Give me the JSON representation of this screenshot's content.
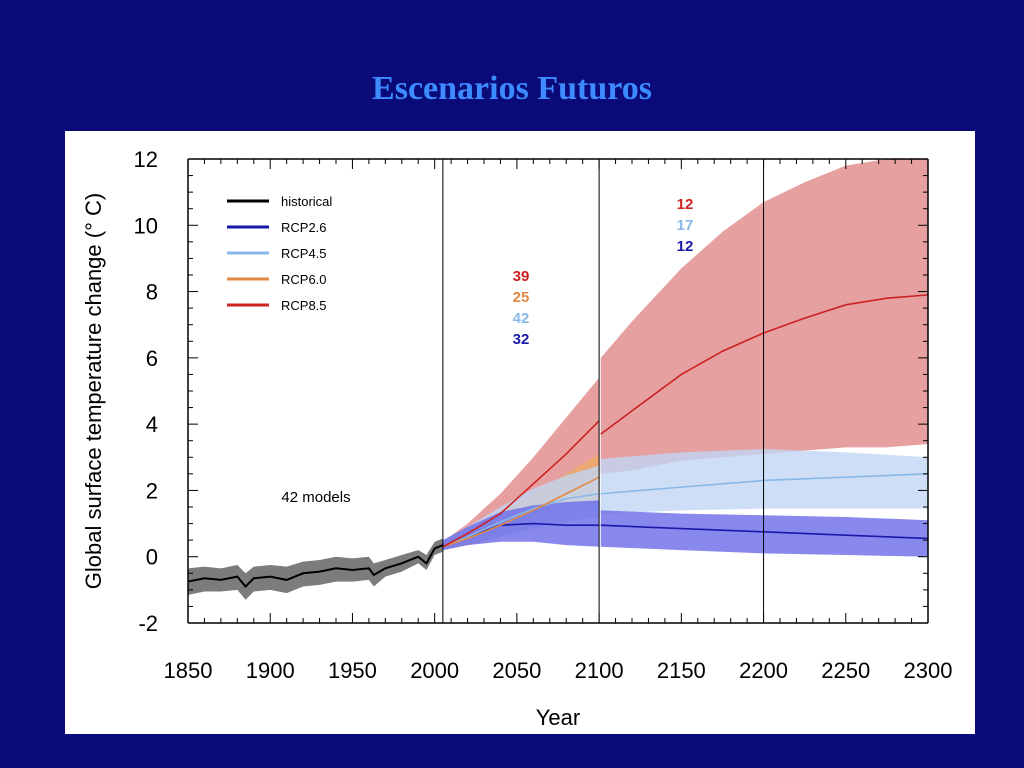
{
  "slide": {
    "title": "Escenarios Futuros",
    "background_color": "#0a0a78",
    "title_color": "#3c8cff"
  },
  "chart_data": {
    "type": "line",
    "xlabel": "Year",
    "ylabel": "Global surface temperature change (° C)",
    "xlim": [
      1850,
      2300
    ],
    "ylim": [
      -2,
      12
    ],
    "xticks": [
      1850,
      1900,
      1950,
      2000,
      2050,
      2100,
      2150,
      2200,
      2250,
      2300
    ],
    "yticks": [
      -2,
      0,
      2,
      4,
      6,
      8,
      10,
      12
    ],
    "legend_position": "top-left",
    "vertical_lines": [
      2005,
      2100,
      2200
    ],
    "annotation": "42 models",
    "model_counts": [
      {
        "period": "2006-2100",
        "series": "RCP8.5",
        "count": "39",
        "color": "#cc2222"
      },
      {
        "period": "2006-2100",
        "series": "RCP6.0",
        "count": "25",
        "color": "#e08844"
      },
      {
        "period": "2006-2100",
        "series": "RCP4.5",
        "count": "42",
        "color": "#88b8e8"
      },
      {
        "period": "2006-2100",
        "series": "RCP2.6",
        "count": "32",
        "color": "#1a1aaa"
      },
      {
        "period": "2101-2300",
        "series": "RCP8.5",
        "count": "12",
        "color": "#cc2222"
      },
      {
        "period": "2101-2300",
        "series": "RCP4.5",
        "count": "17",
        "color": "#88b8e8"
      },
      {
        "period": "2101-2300",
        "series": "RCP2.6",
        "count": "12",
        "color": "#1a1aaa"
      }
    ],
    "series": [
      {
        "name": "historical",
        "color": "#000000",
        "band_color": "#6e6e6e",
        "x": [
          1850,
          1860,
          1870,
          1880,
          1885,
          1890,
          1900,
          1910,
          1920,
          1930,
          1940,
          1950,
          1960,
          1963,
          1970,
          1980,
          1990,
          1995,
          2000,
          2005
        ],
        "y": [
          -0.75,
          -0.65,
          -0.7,
          -0.6,
          -0.9,
          -0.65,
          -0.6,
          -0.7,
          -0.5,
          -0.45,
          -0.35,
          -0.4,
          -0.35,
          -0.55,
          -0.35,
          -0.2,
          0.0,
          -0.2,
          0.25,
          0.35
        ],
        "low": [
          -1.15,
          -1.05,
          -1.05,
          -1.0,
          -1.3,
          -1.05,
          -1.0,
          -1.1,
          -0.9,
          -0.85,
          -0.75,
          -0.75,
          -0.7,
          -0.9,
          -0.6,
          -0.45,
          -0.2,
          -0.4,
          0.05,
          0.15
        ],
        "high": [
          -0.35,
          -0.3,
          -0.35,
          -0.25,
          -0.5,
          -0.3,
          -0.25,
          -0.3,
          -0.15,
          -0.1,
          0.0,
          -0.05,
          0.0,
          -0.2,
          -0.1,
          0.05,
          0.2,
          0.05,
          0.45,
          0.55
        ]
      },
      {
        "name": "RCP2.6",
        "color": "#1a1aaa",
        "band_color": "#6a6ae8",
        "x": [
          2005,
          2020,
          2040,
          2060,
          2080,
          2100,
          2101,
          2150,
          2200,
          2250,
          2300
        ],
        "y": [
          0.3,
          0.6,
          0.95,
          1.0,
          0.95,
          0.95,
          0.95,
          0.85,
          0.75,
          0.65,
          0.55
        ],
        "low": [
          0.2,
          0.35,
          0.45,
          0.45,
          0.35,
          0.3,
          0.3,
          0.2,
          0.1,
          0.05,
          0.0
        ],
        "high": [
          0.5,
          0.9,
          1.35,
          1.55,
          1.65,
          1.7,
          1.4,
          1.3,
          1.25,
          1.2,
          1.1
        ]
      },
      {
        "name": "RCP4.5",
        "color": "#88b8e8",
        "band_color": "#c0d6f4",
        "x": [
          2005,
          2020,
          2040,
          2060,
          2080,
          2100,
          2101,
          2150,
          2200,
          2250,
          2300
        ],
        "y": [
          0.3,
          0.6,
          1.05,
          1.45,
          1.75,
          1.9,
          1.9,
          2.1,
          2.3,
          2.4,
          2.5
        ],
        "low": [
          0.2,
          0.4,
          0.6,
          0.85,
          1.05,
          1.2,
          1.3,
          1.4,
          1.45,
          1.45,
          1.45
        ],
        "high": [
          0.45,
          0.9,
          1.5,
          2.05,
          2.45,
          2.75,
          2.95,
          3.15,
          3.25,
          3.15,
          3.0
        ]
      },
      {
        "name": "RCP6.0",
        "color": "#e08844",
        "band_color": "#eeaa66",
        "x": [
          2005,
          2020,
          2040,
          2060,
          2080,
          2100
        ],
        "y": [
          0.3,
          0.55,
          0.95,
          1.4,
          1.9,
          2.4
        ],
        "low": [
          0.2,
          0.35,
          0.6,
          0.95,
          1.3,
          1.65
        ],
        "high": [
          0.45,
          0.85,
          1.35,
          1.9,
          2.5,
          3.1
        ]
      },
      {
        "name": "RCP8.5",
        "color": "#cc2222",
        "band_color": "#e08888",
        "x": [
          2005,
          2020,
          2040,
          2060,
          2080,
          2100,
          2101,
          2120,
          2150,
          2175,
          2200,
          2225,
          2250,
          2275,
          2300
        ],
        "y": [
          0.3,
          0.7,
          1.3,
          2.2,
          3.1,
          4.1,
          3.7,
          4.4,
          5.5,
          6.2,
          6.75,
          7.2,
          7.6,
          7.8,
          7.9
        ],
        "low": [
          0.2,
          0.45,
          0.8,
          1.3,
          1.9,
          2.5,
          2.5,
          2.6,
          2.9,
          3.0,
          3.1,
          3.2,
          3.3,
          3.3,
          3.4
        ],
        "high": [
          0.45,
          1.0,
          1.9,
          3.0,
          4.2,
          5.4,
          6.0,
          7.1,
          8.7,
          9.8,
          10.7,
          11.3,
          11.8,
          12.0,
          12.0
        ]
      }
    ]
  }
}
